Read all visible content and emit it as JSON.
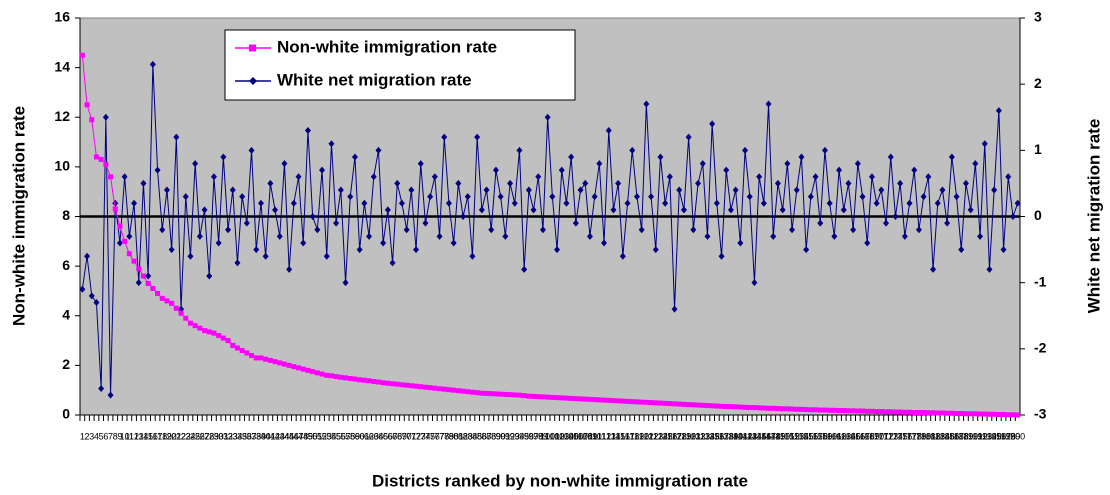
{
  "chart_data": {
    "type": "line",
    "x_label": "Districts ranked by non-white immigration rate",
    "y_label": "Non-white immigration rate",
    "y2_label": "White net migration rate",
    "legend": "top-left",
    "ylim": [
      0,
      16
    ],
    "yticks": [
      0,
      2,
      4,
      6,
      8,
      10,
      12,
      14,
      16
    ],
    "y2lim": [
      -3,
      3
    ],
    "y2ticks": [
      -3,
      -2,
      -1,
      0,
      1,
      2,
      3
    ],
    "background": "#c0c0c0",
    "categories": [
      1,
      2,
      3,
      4,
      5,
      6,
      7,
      8,
      9,
      10,
      11,
      12,
      13,
      14,
      15,
      16,
      17,
      18,
      19,
      20,
      21,
      22,
      23,
      24,
      25,
      26,
      27,
      28,
      29,
      30,
      31,
      32,
      33,
      34,
      35,
      36,
      37,
      38,
      39,
      40,
      41,
      42,
      43,
      44,
      45,
      46,
      47,
      48,
      49,
      50,
      51,
      52,
      53,
      54,
      55,
      56,
      57,
      58,
      59,
      60,
      61,
      62,
      63,
      64,
      65,
      66,
      67,
      68,
      69,
      70,
      71,
      72,
      73,
      74,
      75,
      76,
      77,
      78,
      79,
      80,
      81,
      82,
      83,
      84,
      85,
      86,
      87,
      88,
      89,
      90,
      91,
      92,
      93,
      94,
      95,
      96,
      97,
      98,
      99,
      100,
      101,
      102,
      103,
      104,
      105,
      106,
      107,
      108,
      109,
      110,
      111,
      112,
      113,
      114,
      115,
      116,
      117,
      118,
      119,
      120,
      121,
      122,
      123,
      124,
      125,
      126,
      127,
      128,
      129,
      130,
      131,
      132,
      133,
      134,
      135,
      136,
      137,
      138,
      139,
      140,
      141,
      142,
      143,
      144,
      145,
      146,
      147,
      148,
      149,
      150,
      151,
      152,
      153,
      154,
      155,
      156,
      157,
      158,
      159,
      160,
      161,
      162,
      163,
      164,
      165,
      166,
      167,
      168,
      169,
      170,
      171,
      172,
      173,
      174,
      175,
      176,
      177,
      178,
      179,
      180,
      181,
      182,
      183,
      184,
      185,
      186,
      187,
      188,
      189,
      190,
      191,
      192,
      193,
      194,
      195,
      196,
      197,
      198,
      199,
      200
    ],
    "series": [
      {
        "name": "Non-white immigration rate",
        "color": "#ff00ff",
        "marker": "square",
        "values": [
          14.5,
          12.5,
          11.9,
          10.4,
          10.3,
          10.1,
          9.6,
          8.3,
          7.6,
          7.0,
          6.5,
          6.2,
          5.9,
          5.6,
          5.3,
          5.1,
          4.9,
          4.7,
          4.6,
          4.5,
          4.3,
          4.1,
          3.9,
          3.7,
          3.6,
          3.5,
          3.4,
          3.35,
          3.3,
          3.2,
          3.1,
          3.0,
          2.8,
          2.7,
          2.6,
          2.5,
          2.4,
          2.3,
          2.3,
          2.25,
          2.2,
          2.15,
          2.1,
          2.05,
          2.0,
          1.95,
          1.9,
          1.85,
          1.8,
          1.75,
          1.7,
          1.65,
          1.6,
          1.58,
          1.55,
          1.52,
          1.5,
          1.47,
          1.45,
          1.42,
          1.4,
          1.38,
          1.35,
          1.33,
          1.3,
          1.28,
          1.26,
          1.24,
          1.22,
          1.2,
          1.18,
          1.16,
          1.14,
          1.12,
          1.1,
          1.08,
          1.06,
          1.04,
          1.02,
          1.0,
          0.98,
          0.96,
          0.94,
          0.92,
          0.9,
          0.88,
          0.87,
          0.86,
          0.85,
          0.84,
          0.83,
          0.82,
          0.81,
          0.8,
          0.78,
          0.76,
          0.75,
          0.74,
          0.73,
          0.72,
          0.71,
          0.7,
          0.69,
          0.68,
          0.67,
          0.66,
          0.65,
          0.64,
          0.63,
          0.62,
          0.61,
          0.6,
          0.59,
          0.58,
          0.57,
          0.56,
          0.55,
          0.54,
          0.53,
          0.52,
          0.51,
          0.5,
          0.49,
          0.48,
          0.47,
          0.46,
          0.45,
          0.44,
          0.43,
          0.42,
          0.41,
          0.4,
          0.39,
          0.38,
          0.37,
          0.36,
          0.35,
          0.34,
          0.34,
          0.33,
          0.32,
          0.31,
          0.3,
          0.3,
          0.29,
          0.28,
          0.27,
          0.27,
          0.26,
          0.25,
          0.25,
          0.24,
          0.23,
          0.23,
          0.22,
          0.21,
          0.21,
          0.2,
          0.2,
          0.19,
          0.19,
          0.18,
          0.18,
          0.17,
          0.17,
          0.16,
          0.16,
          0.15,
          0.15,
          0.14,
          0.14,
          0.13,
          0.13,
          0.12,
          0.12,
          0.11,
          0.11,
          0.1,
          0.1,
          0.1,
          0.09,
          0.09,
          0.08,
          0.08,
          0.07,
          0.07,
          0.06,
          0.06,
          0.05,
          0.05,
          0.05,
          0.04,
          0.04,
          0.03,
          0.03,
          0.02,
          0.02,
          0.01,
          0.01,
          0.0
        ]
      },
      {
        "name": "White net migration rate",
        "color": "#000080",
        "marker": "diamond",
        "axis": "y2",
        "values": [
          -1.1,
          -0.6,
          -1.2,
          -1.3,
          -2.6,
          1.5,
          -2.7,
          0.2,
          -0.4,
          0.6,
          -0.3,
          0.2,
          -1.0,
          0.5,
          -0.9,
          2.3,
          0.7,
          -0.2,
          0.4,
          -0.5,
          1.2,
          -1.4,
          0.3,
          -0.6,
          0.8,
          -0.3,
          0.1,
          -0.9,
          0.6,
          -0.4,
          0.9,
          -0.2,
          0.4,
          -0.7,
          0.3,
          -0.1,
          1.0,
          -0.5,
          0.2,
          -0.6,
          0.5,
          0.1,
          -0.3,
          0.8,
          -0.8,
          0.2,
          0.6,
          -0.4,
          1.3,
          0.0,
          -0.2,
          0.7,
          -0.6,
          1.1,
          -0.1,
          0.4,
          -1.0,
          0.3,
          0.9,
          -0.5,
          0.2,
          -0.3,
          0.6,
          1.0,
          -0.4,
          0.1,
          -0.7,
          0.5,
          0.2,
          -0.2,
          0.4,
          -0.5,
          0.8,
          -0.1,
          0.3,
          0.6,
          -0.3,
          1.2,
          0.2,
          -0.4,
          0.5,
          0.0,
          0.3,
          -0.6,
          1.2,
          0.1,
          0.4,
          -0.2,
          0.7,
          0.3,
          -0.3,
          0.5,
          0.2,
          1.0,
          -0.8,
          0.4,
          0.1,
          0.6,
          -0.2,
          1.5,
          0.3,
          -0.5,
          0.7,
          0.2,
          0.9,
          -0.1,
          0.4,
          0.5,
          -0.3,
          0.3,
          0.8,
          -0.4,
          1.3,
          0.1,
          0.5,
          -0.6,
          0.2,
          1.0,
          0.3,
          -0.2,
          1.7,
          0.3,
          -0.5,
          0.9,
          0.2,
          0.6,
          -1.4,
          0.4,
          0.1,
          1.2,
          -0.2,
          0.5,
          0.8,
          -0.3,
          1.4,
          0.2,
          -0.6,
          0.7,
          0.1,
          0.4,
          -0.4,
          1.0,
          0.3,
          -1.0,
          0.6,
          0.2,
          1.7,
          -0.3,
          0.5,
          0.1,
          0.8,
          -0.2,
          0.4,
          0.9,
          -0.5,
          0.3,
          0.6,
          -0.1,
          1.0,
          0.2,
          -0.3,
          0.7,
          0.1,
          0.5,
          -0.2,
          0.8,
          0.3,
          -0.4,
          0.6,
          0.2,
          0.4,
          -0.1,
          0.9,
          0.0,
          0.5,
          -0.3,
          0.2,
          0.7,
          -0.2,
          0.3,
          0.6,
          -0.8,
          0.2,
          0.4,
          -0.1,
          0.9,
          0.3,
          -0.5,
          0.5,
          0.1,
          0.8,
          -0.3,
          1.1,
          -0.8,
          0.4,
          1.6,
          -0.5,
          0.6,
          0.0,
          0.2
        ]
      }
    ]
  }
}
